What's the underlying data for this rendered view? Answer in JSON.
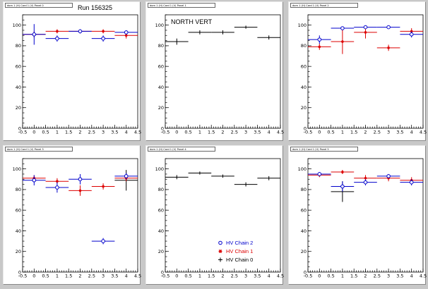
{
  "run_label": "Run 156325",
  "colors": {
    "chain0": "#000000",
    "chain1": "#dd0000",
    "chain2": "#0000cc"
  },
  "legend": [
    {
      "label": "HV Chain 2",
      "series": "chain2",
      "marker": "open-circle"
    },
    {
      "label": "HV Chain 1",
      "series": "chain1",
      "marker": "star"
    },
    {
      "label": "HV Chain 0",
      "series": "chain0",
      "marker": "plus"
    }
  ],
  "chart_data": [
    {
      "type": "scatter",
      "pad_title": "dom 1 (H) Card 1 (V) Panel 0",
      "annotation": "",
      "xlim": [
        -0.5,
        4.5
      ],
      "ylim": [
        0,
        110
      ],
      "xticks": [
        "-0.5",
        "0",
        "0.5",
        "1",
        "1.5",
        "2",
        "2.5",
        "3",
        "3.5",
        "4",
        "4.5"
      ],
      "yticks": [
        "0",
        "20",
        "40",
        "60",
        "80",
        "100"
      ],
      "series": [
        {
          "key": "chain2",
          "points": [
            {
              "x": 0,
              "y": 91,
              "ex": 0.5,
              "ey": 10
            },
            {
              "x": 1,
              "y": 87,
              "ex": 0.5,
              "ey": 3
            },
            {
              "x": 2,
              "y": 94,
              "ex": 0.5,
              "ey": 2
            },
            {
              "x": 3,
              "y": 87,
              "ex": 0.5,
              "ey": 3
            },
            {
              "x": 4,
              "y": 93,
              "ex": 0.5,
              "ey": 2
            }
          ]
        },
        {
          "key": "chain1",
          "points": [
            {
              "x": 0,
              "y": 91,
              "ex": 0.5,
              "ey": 3
            },
            {
              "x": 1,
              "y": 94,
              "ex": 0.5,
              "ey": 2
            },
            {
              "x": 2,
              "y": 94,
              "ex": 0.5,
              "ey": 2
            },
            {
              "x": 3,
              "y": 94,
              "ex": 0.5,
              "ey": 2
            },
            {
              "x": 4,
              "y": 90,
              "ex": 0.5,
              "ey": 3
            }
          ]
        }
      ]
    },
    {
      "type": "scatter",
      "pad_title": "dom 1 (H) Card 1 (V) Panel 1",
      "annotation": "NORTH VERT",
      "xlim": [
        -0.5,
        4.5
      ],
      "ylim": [
        0,
        110
      ],
      "xticks": [
        "-0.5",
        "0",
        "0.5",
        "1",
        "1.5",
        "2",
        "2.5",
        "3",
        "3.5",
        "4",
        "4.5"
      ],
      "yticks": [
        "0",
        "20",
        "40",
        "60",
        "80",
        "100"
      ],
      "series": [
        {
          "key": "chain0",
          "points": [
            {
              "x": 0,
              "y": 84,
              "ex": 0.5,
              "ey": 3
            },
            {
              "x": 1,
              "y": 93,
              "ex": 0.5,
              "ey": 2
            },
            {
              "x": 2,
              "y": 93,
              "ex": 0.5,
              "ey": 2
            },
            {
              "x": 3,
              "y": 98,
              "ex": 0.5,
              "ey": 1.5
            },
            {
              "x": 4,
              "y": 88,
              "ex": 0.5,
              "ey": 2
            }
          ]
        }
      ]
    },
    {
      "type": "scatter",
      "pad_title": "dom 1 (H) Card 1 (V) Panel 2",
      "annotation": "",
      "xlim": [
        -0.5,
        4.5
      ],
      "ylim": [
        0,
        110
      ],
      "xticks": [
        "-0.5",
        "0",
        "0.5",
        "1",
        "1.5",
        "2",
        "2.5",
        "3",
        "3.5",
        "4",
        "4.5"
      ],
      "yticks": [
        "0",
        "20",
        "40",
        "60",
        "80",
        "100"
      ],
      "series": [
        {
          "key": "chain2",
          "points": [
            {
              "x": 0,
              "y": 86,
              "ex": 0.5,
              "ey": 4
            },
            {
              "x": 1,
              "y": 97,
              "ex": 0.5,
              "ey": 1.5
            },
            {
              "x": 2,
              "y": 98,
              "ex": 0.5,
              "ey": 1.5
            },
            {
              "x": 3,
              "y": 98,
              "ex": 0.5,
              "ey": 1.5
            },
            {
              "x": 4,
              "y": 91,
              "ex": 0.5,
              "ey": 3
            }
          ]
        },
        {
          "key": "chain1",
          "points": [
            {
              "x": 0,
              "y": 79,
              "ex": 0.5,
              "ey": 3
            },
            {
              "x": 1,
              "y": 84,
              "ex": 0.5,
              "ey": 12
            },
            {
              "x": 2,
              "y": 93,
              "ex": 0.5,
              "ey": 6
            },
            {
              "x": 3,
              "y": 78,
              "ex": 0.5,
              "ey": 3
            },
            {
              "x": 4,
              "y": 94,
              "ex": 0.5,
              "ey": 3
            }
          ]
        }
      ]
    },
    {
      "type": "scatter",
      "pad_title": "dom 1 (H) Card 1 (V) Panel 3",
      "annotation": "",
      "xlim": [
        -0.5,
        4.5
      ],
      "ylim": [
        0,
        110
      ],
      "xticks": [
        "-0.5",
        "0",
        "0.5",
        "1",
        "1.5",
        "2",
        "2.5",
        "3",
        "3.5",
        "4",
        "4.5"
      ],
      "yticks": [
        "0",
        "20",
        "40",
        "60",
        "80",
        "100"
      ],
      "series": [
        {
          "key": "chain2",
          "points": [
            {
              "x": 0,
              "y": 89,
              "ex": 0.5,
              "ey": 5
            },
            {
              "x": 1,
              "y": 82,
              "ex": 0.5,
              "ey": 5
            },
            {
              "x": 2,
              "y": 90,
              "ex": 0.5,
              "ey": 5
            },
            {
              "x": 3,
              "y": 30,
              "ex": 0.5,
              "ey": 3
            },
            {
              "x": 4,
              "y": 93,
              "ex": 0.5,
              "ey": 3
            }
          ]
        },
        {
          "key": "chain1",
          "points": [
            {
              "x": 0,
              "y": 91,
              "ex": 0.5,
              "ey": 3
            },
            {
              "x": 1,
              "y": 88,
              "ex": 0.5,
              "ey": 3
            },
            {
              "x": 2,
              "y": 79,
              "ex": 0.5,
              "ey": 5
            },
            {
              "x": 3,
              "y": 83,
              "ex": 0.5,
              "ey": 3
            },
            {
              "x": 4,
              "y": 91,
              "ex": 0.5,
              "ey": 3
            }
          ]
        },
        {
          "key": "chain0",
          "points": [
            {
              "x": 4,
              "y": 89,
              "ex": 0.5,
              "ey": 10
            }
          ]
        }
      ]
    },
    {
      "type": "scatter",
      "pad_title": "dom 1 (H) Card 1 (V) Panel 4",
      "annotation": "",
      "xlim": [
        -0.5,
        4.5
      ],
      "ylim": [
        0,
        110
      ],
      "xticks": [
        "-0.5",
        "0",
        "0.5",
        "1",
        "1.5",
        "2",
        "2.5",
        "3",
        "3.5",
        "4",
        "4.5"
      ],
      "yticks": [
        "0",
        "20",
        "40",
        "60",
        "80",
        "100"
      ],
      "series": [
        {
          "key": "chain0",
          "points": [
            {
              "x": 0,
              "y": 92,
              "ex": 0.5,
              "ey": 2
            },
            {
              "x": 1,
              "y": 96,
              "ex": 0.5,
              "ey": 1.5
            },
            {
              "x": 2,
              "y": 93,
              "ex": 0.5,
              "ey": 1.5
            },
            {
              "x": 3,
              "y": 85,
              "ex": 0.5,
              "ey": 2
            },
            {
              "x": 4,
              "y": 91,
              "ex": 0.5,
              "ey": 2
            }
          ]
        }
      ]
    },
    {
      "type": "scatter",
      "pad_title": "dom 1 (H) Card 1 (V) Panel 5",
      "annotation": "",
      "xlim": [
        -0.5,
        4.5
      ],
      "ylim": [
        0,
        110
      ],
      "xticks": [
        "-0.5",
        "0",
        "0.5",
        "1",
        "1.5",
        "2",
        "2.5",
        "3",
        "3.5",
        "4",
        "4.5"
      ],
      "yticks": [
        "0",
        "20",
        "40",
        "60",
        "80",
        "100"
      ],
      "series": [
        {
          "key": "chain2",
          "points": [
            {
              "x": 0,
              "y": 95,
              "ex": 0.5,
              "ey": 2
            },
            {
              "x": 1,
              "y": 83,
              "ex": 0.5,
              "ey": 5
            },
            {
              "x": 2,
              "y": 87,
              "ex": 0.5,
              "ey": 3
            },
            {
              "x": 3,
              "y": 93,
              "ex": 0.5,
              "ey": 2
            },
            {
              "x": 4,
              "y": 87,
              "ex": 0.5,
              "ey": 3
            }
          ]
        },
        {
          "key": "chain1",
          "points": [
            {
              "x": 0,
              "y": 94,
              "ex": 0.5,
              "ey": 2
            },
            {
              "x": 1,
              "y": 97,
              "ex": 0.5,
              "ey": 2
            },
            {
              "x": 2,
              "y": 91,
              "ex": 0.5,
              "ey": 3
            },
            {
              "x": 3,
              "y": 91,
              "ex": 0.5,
              "ey": 3
            },
            {
              "x": 4,
              "y": 89,
              "ex": 0.5,
              "ey": 3
            }
          ]
        },
        {
          "key": "chain0",
          "points": [
            {
              "x": 1,
              "y": 78,
              "ex": 0.5,
              "ey": 10
            }
          ]
        }
      ]
    }
  ]
}
